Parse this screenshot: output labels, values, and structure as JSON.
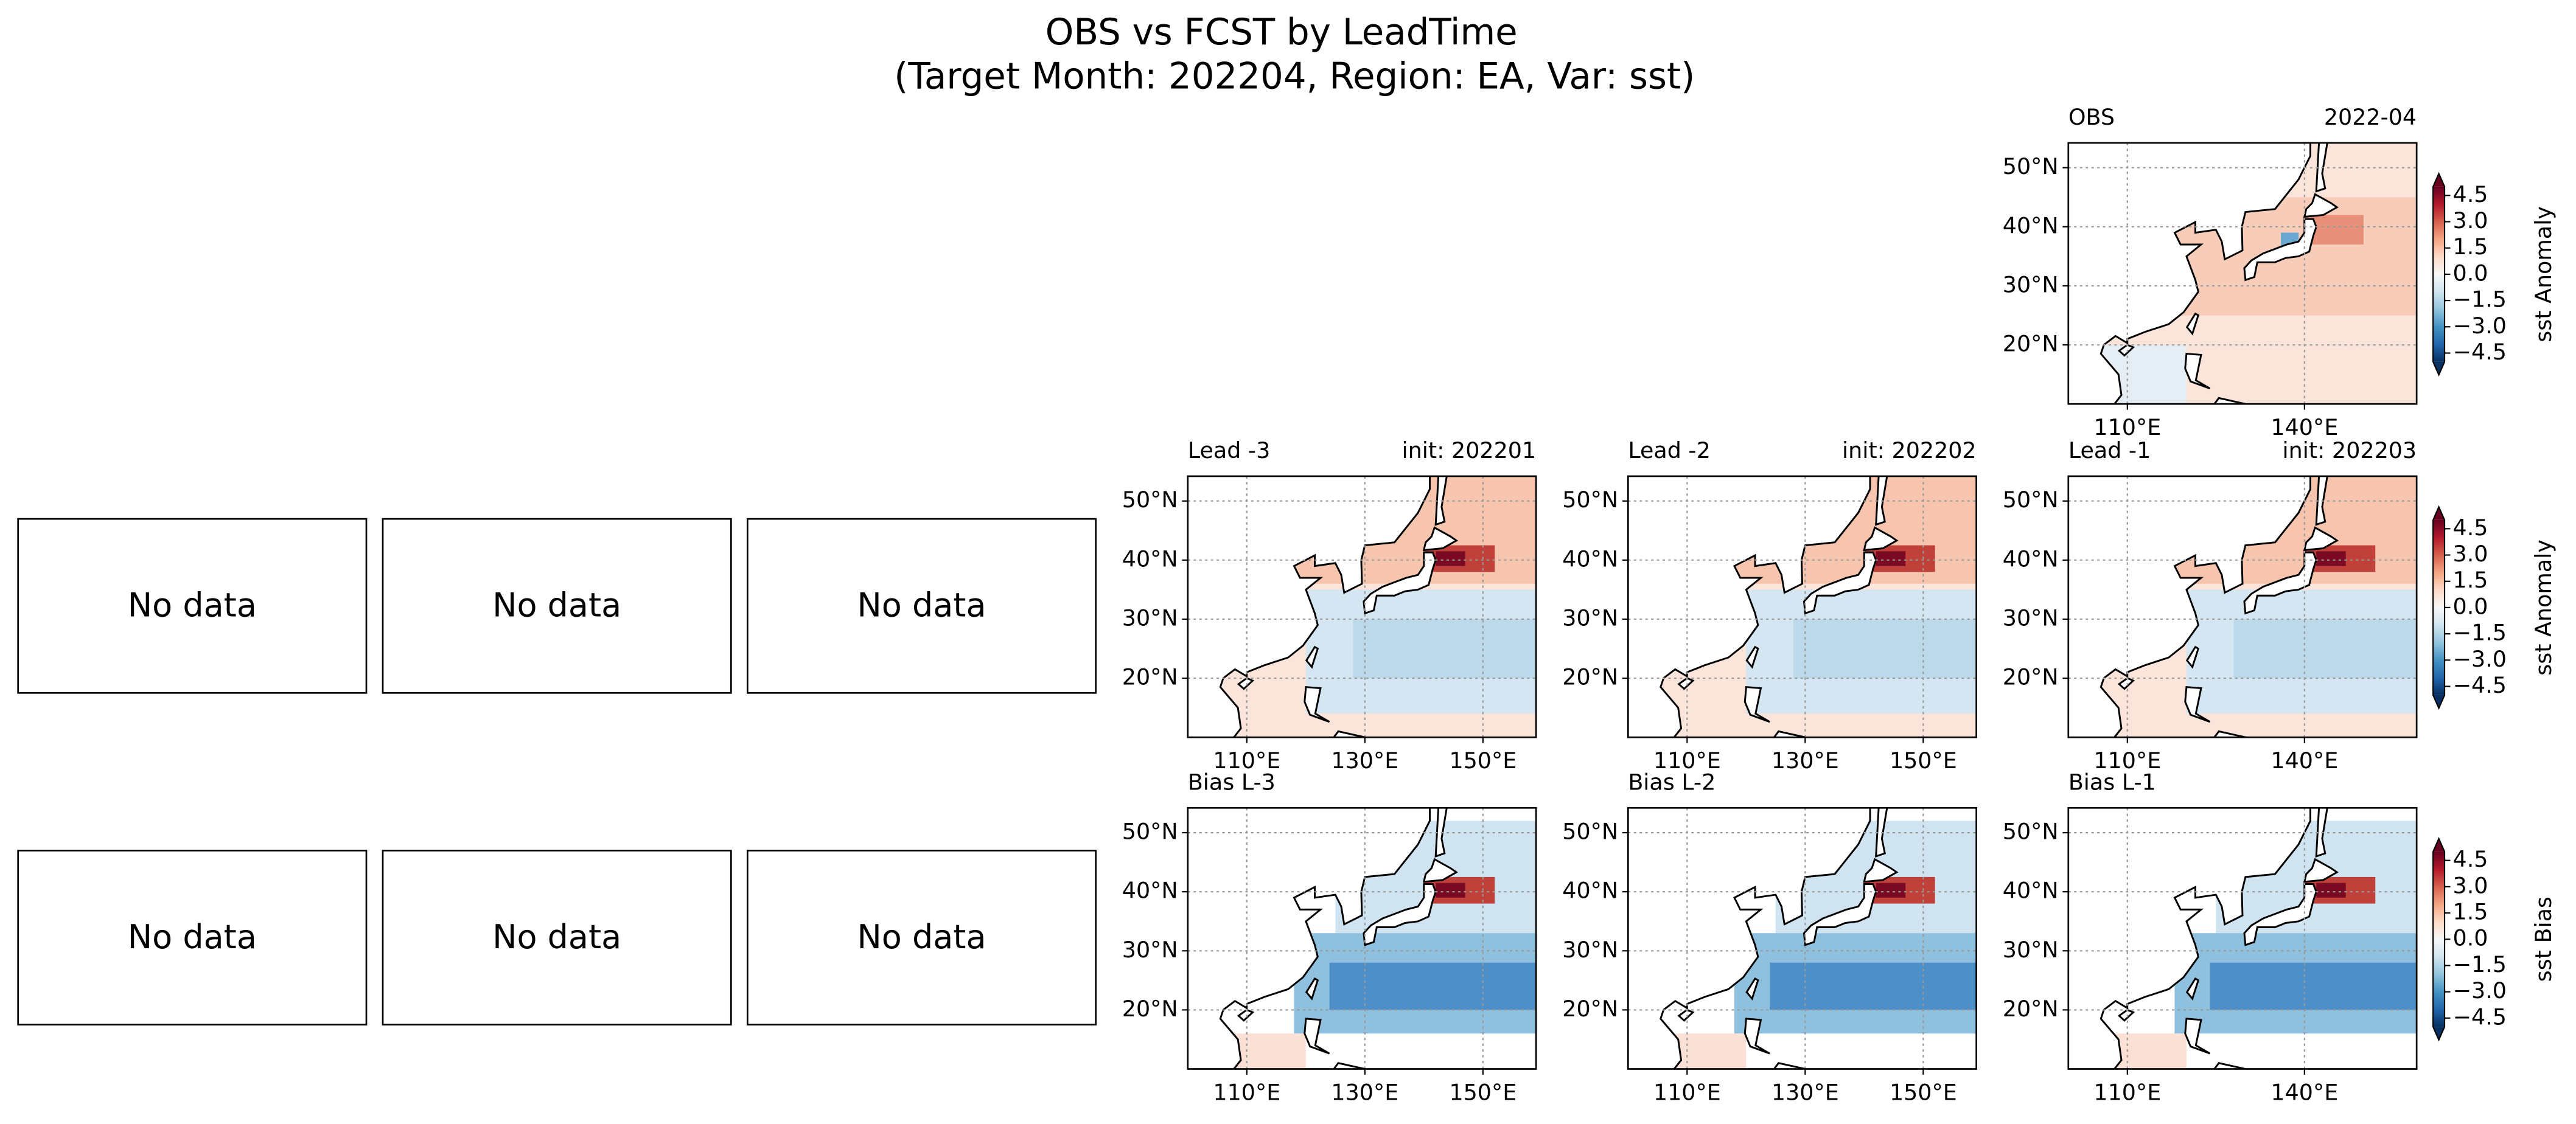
{
  "title": [
    "OBS vs FCST by LeadTime",
    "(Target Month: 202204, Region: EA, Var: sst)"
  ],
  "map": {
    "xlim": [
      100,
      159
    ],
    "ylim": [
      10,
      54.2
    ],
    "yticks": [
      {
        "value": 20,
        "label": "20°N"
      },
      {
        "value": 30,
        "label": "30°N"
      },
      {
        "value": 40,
        "label": "40°N"
      },
      {
        "value": 50,
        "label": "50°N"
      }
    ]
  },
  "rows": [
    {
      "placeholders": [],
      "panels": [
        {
          "left": "OBS",
          "right": "2022-04",
          "xticks": [
            {
              "value": 110,
              "label": "110°E"
            },
            {
              "value": 140,
              "label": "140°E"
            }
          ]
        }
      ],
      "colorbar": {
        "label": "sst Anomaly",
        "lim": [
          -5,
          5
        ],
        "ticks": [
          4.5,
          {
            "value": 3,
            "label": "3.0"
          },
          1.5,
          {
            "value": 0,
            "label": "0.0"
          },
          {
            "value": -1.5,
            "label": "−1.5"
          },
          {
            "value": -3,
            "label": "−3.0"
          },
          {
            "value": -4.5,
            "label": "−4.5"
          }
        ]
      }
    },
    {
      "placeholders": [
        "No data",
        "No data",
        "No data"
      ],
      "panels": [
        {
          "left": "Lead -3",
          "right": "init: 202201",
          "xticks": [
            {
              "value": 110,
              "label": "110°E"
            },
            {
              "value": 130,
              "label": "130°E"
            },
            {
              "value": 150,
              "label": "150°E"
            }
          ]
        },
        {
          "left": "Lead -2",
          "right": "init: 202202",
          "xticks": [
            {
              "value": 110,
              "label": "110°E"
            },
            {
              "value": 130,
              "label": "130°E"
            },
            {
              "value": 150,
              "label": "150°E"
            }
          ]
        },
        {
          "left": "Lead -1",
          "right": "init: 202203",
          "xticks": [
            {
              "value": 110,
              "label": "110°E"
            },
            {
              "value": 140,
              "label": "140°E"
            }
          ]
        }
      ],
      "colorbar": {
        "label": "sst Anomaly",
        "lim": [
          -5,
          5
        ],
        "ticks": [
          4.5,
          {
            "value": 3,
            "label": "3.0"
          },
          1.5,
          {
            "value": 0,
            "label": "0.0"
          },
          {
            "value": -1.5,
            "label": "−1.5"
          },
          {
            "value": -3,
            "label": "−3.0"
          },
          {
            "value": -4.5,
            "label": "−4.5"
          }
        ]
      }
    },
    {
      "placeholders": [
        "No data",
        "No data",
        "No data"
      ],
      "panels": [
        {
          "left": "Bias L-3",
          "xticks": [
            {
              "value": 110,
              "label": "110°E"
            },
            {
              "value": 130,
              "label": "130°E"
            },
            {
              "value": 150,
              "label": "150°E"
            }
          ]
        },
        {
          "left": "Bias L-2",
          "xticks": [
            {
              "value": 110,
              "label": "110°E"
            },
            {
              "value": 130,
              "label": "130°E"
            },
            {
              "value": 150,
              "label": "150°E"
            }
          ]
        },
        {
          "left": "Bias L-1",
          "xticks": [
            {
              "value": 110,
              "label": "110°E"
            },
            {
              "value": 140,
              "label": "140°E"
            }
          ]
        }
      ],
      "colorbar": {
        "label": "sst Bias",
        "lim": [
          -5,
          5
        ],
        "ticks": [
          4.5,
          {
            "value": 3,
            "label": "3.0"
          },
          1.5,
          {
            "value": 0,
            "label": "0.0"
          },
          {
            "value": -1.5,
            "label": "−1.5"
          },
          {
            "value": -3,
            "label": "−3.0"
          },
          {
            "value": -4.5,
            "label": "−4.5"
          }
        ]
      }
    }
  ]
}
